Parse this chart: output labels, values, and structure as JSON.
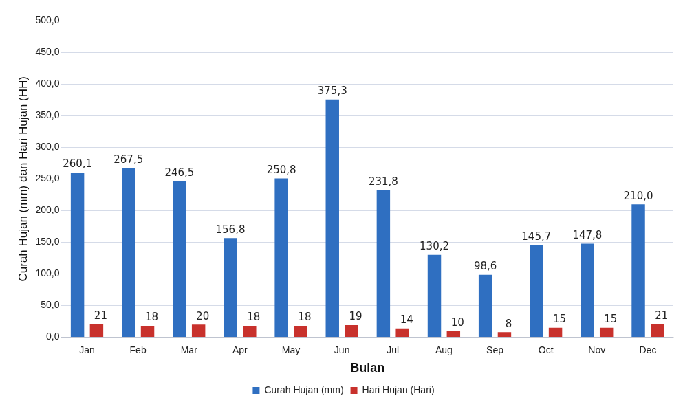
{
  "chart_data": {
    "type": "bar",
    "xlabel": "Bulan",
    "ylabel": "Curah Hujan (mm) dan Hari Hujan (HH)",
    "categories": [
      "Jan",
      "Feb",
      "Mar",
      "Apr",
      "May",
      "Jun",
      "Jul",
      "Aug",
      "Sep",
      "Oct",
      "Nov",
      "Dec"
    ],
    "series": [
      {
        "name": "Curah Hujan (mm)",
        "color": "#2f6fc1",
        "values": [
          260.1,
          267.5,
          246.5,
          156.8,
          250.8,
          375.3,
          231.8,
          130.2,
          98.6,
          145.7,
          147.8,
          210.0
        ],
        "value_labels": [
          "260,1",
          "267,5",
          "246,5",
          "156,8",
          "250,8",
          "375,3",
          "231,8",
          "130,2",
          "98,6",
          "145,7",
          "147,8",
          "210,0"
        ]
      },
      {
        "name": "Hari Hujan (Hari)",
        "color": "#c8312c",
        "values": [
          21,
          18,
          20,
          18,
          18,
          19,
          14,
          10,
          8,
          15,
          15,
          21
        ],
        "value_labels": [
          "21",
          "18",
          "20",
          "18",
          "18",
          "19",
          "14",
          "10",
          "8",
          "15",
          "15",
          "21"
        ]
      }
    ],
    "ylim": [
      0,
      500
    ],
    "yticks": [
      {
        "value": 0,
        "label": "0,0"
      },
      {
        "value": 50,
        "label": "50,0"
      },
      {
        "value": 100,
        "label": "100,0"
      },
      {
        "value": 150,
        "label": "150,0"
      },
      {
        "value": 200,
        "label": "200,0"
      },
      {
        "value": 250,
        "label": "250,0"
      },
      {
        "value": 300,
        "label": "300,0"
      },
      {
        "value": 350,
        "label": "350,0"
      },
      {
        "value": 400,
        "label": "400,0"
      },
      {
        "value": 450,
        "label": "450,0"
      },
      {
        "value": 500,
        "label": "500,0"
      }
    ],
    "grid": "y",
    "legend": "bottom"
  }
}
